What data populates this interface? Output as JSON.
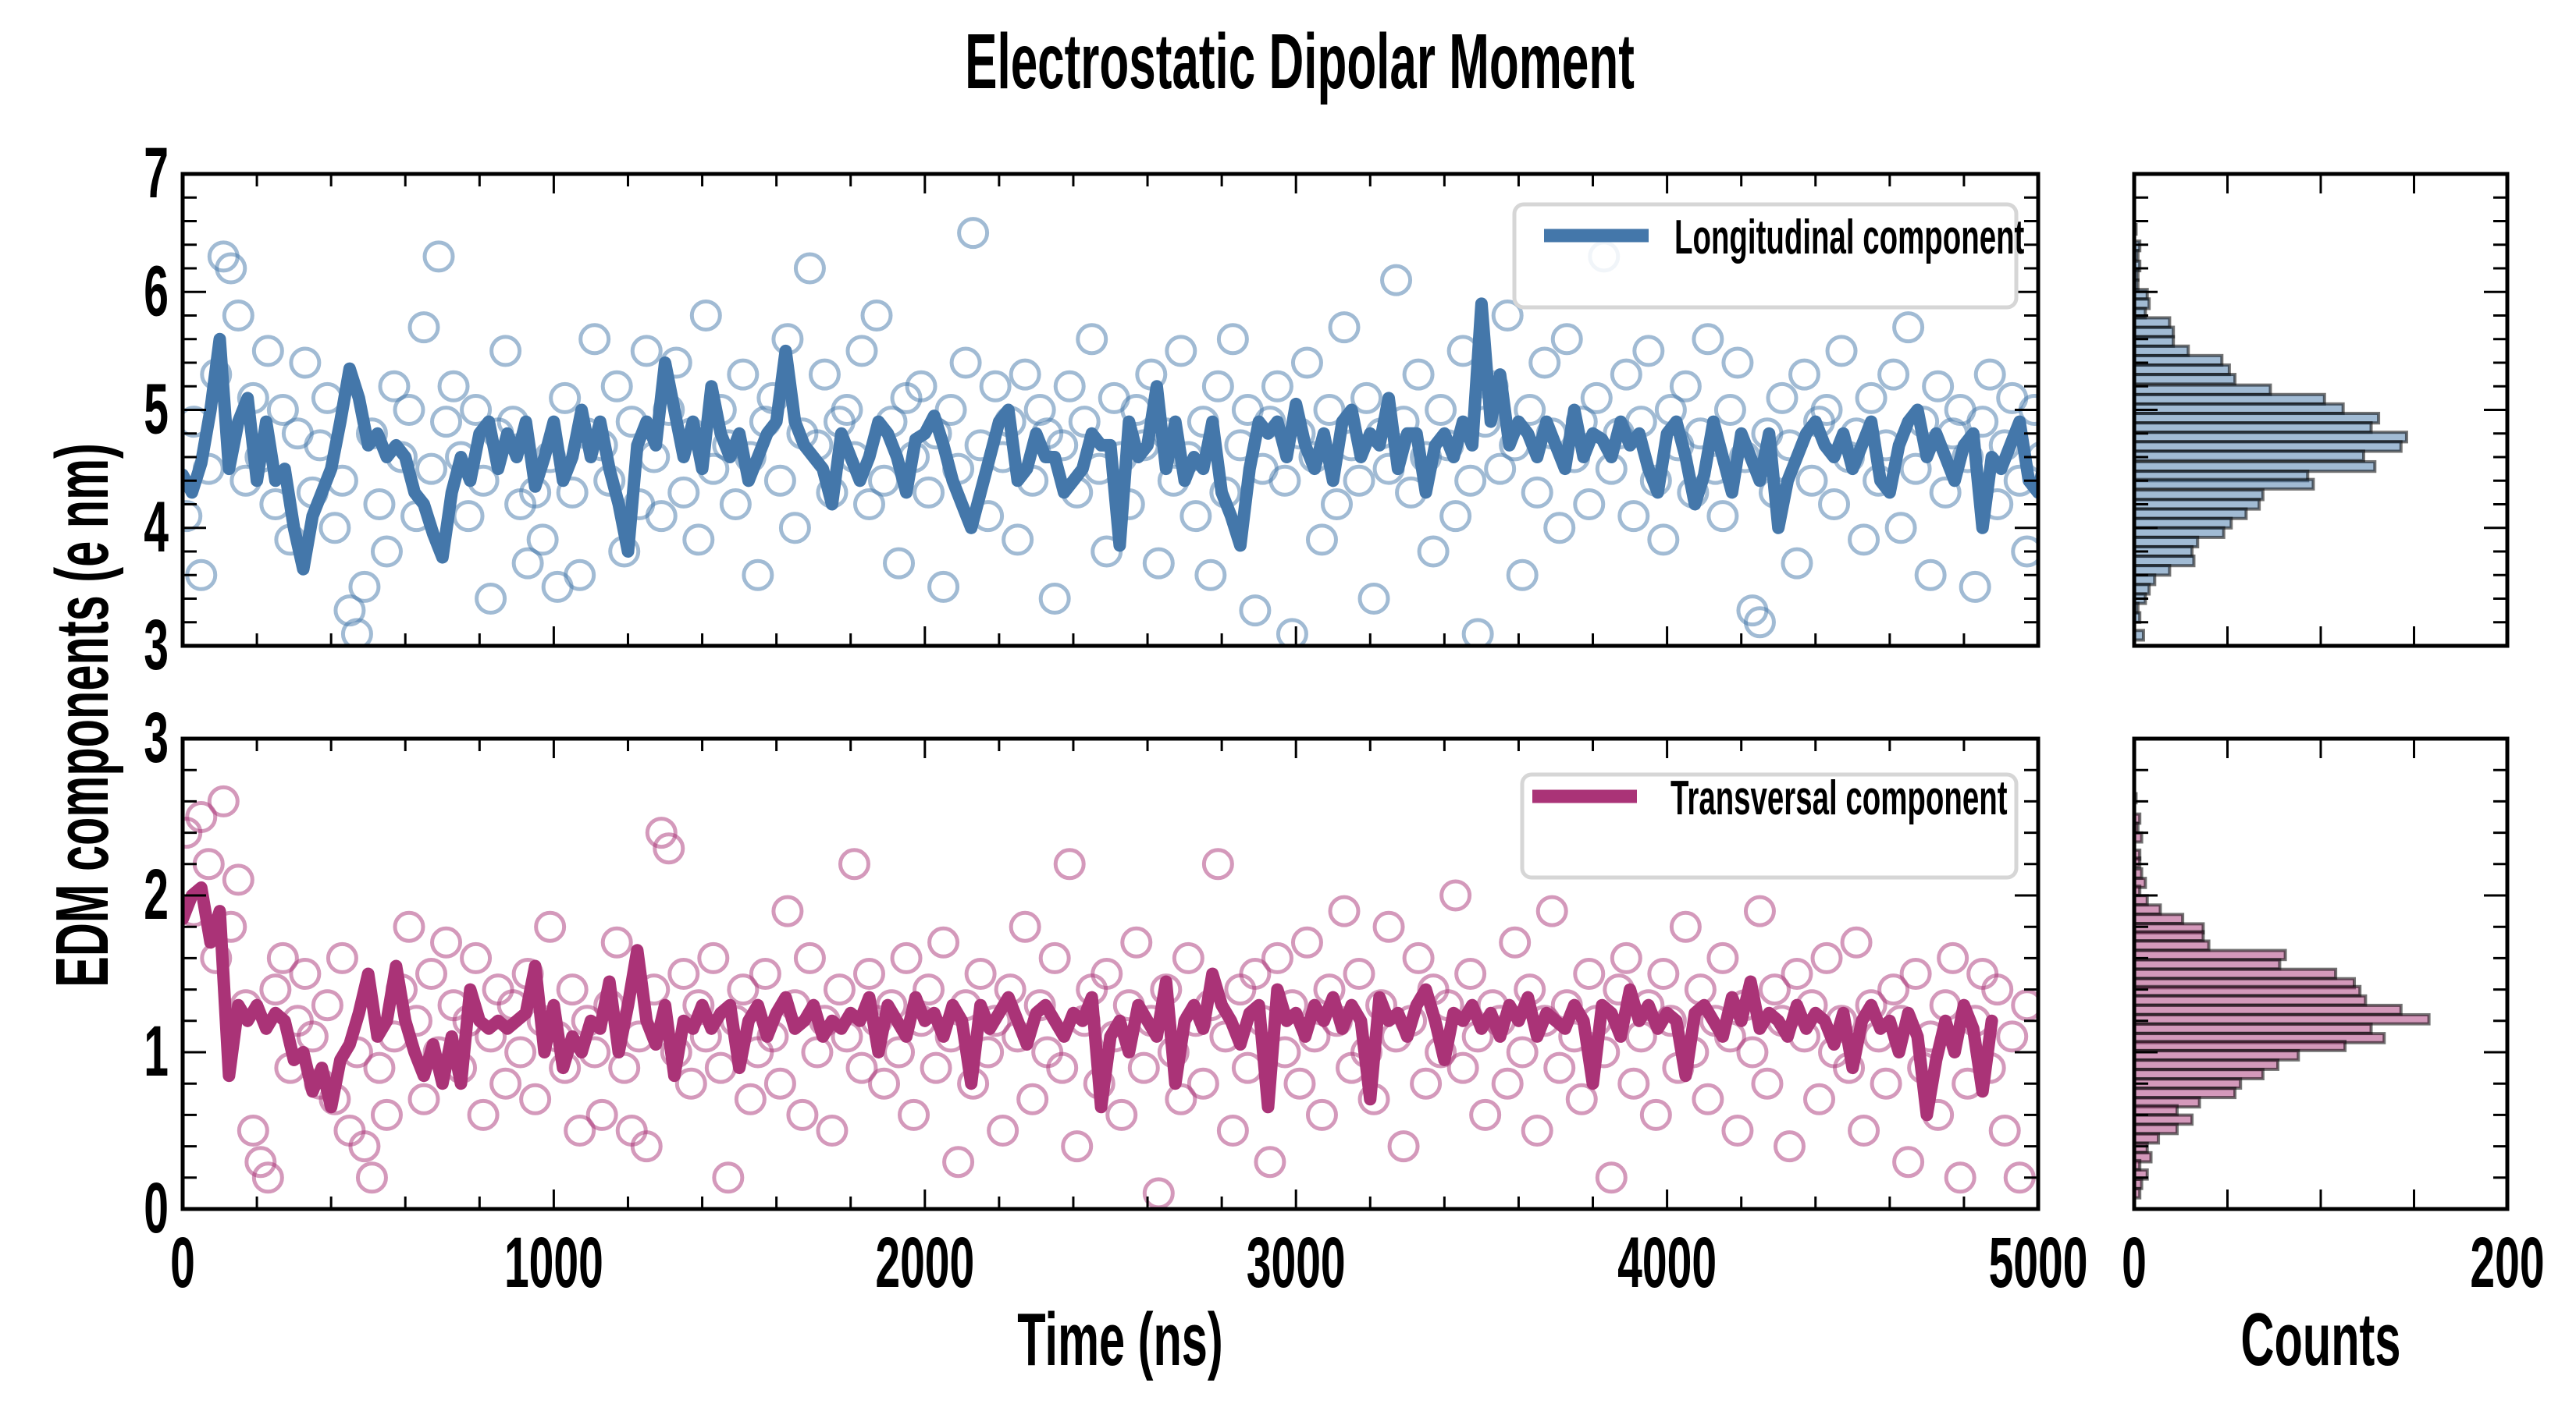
{
  "chart_data": [
    {
      "type": "scatter",
      "panel": "top-timeseries",
      "title": "Electrostatic Dipolar Moment",
      "xlabel": "Time (ns)",
      "ylabel": "EDM components (e nm)",
      "xlim": [
        0,
        5000
      ],
      "ylim": [
        3,
        7
      ],
      "xticks": [
        "0",
        "1000",
        "2000",
        "3000",
        "4000",
        "5000"
      ],
      "yticks": [
        "3",
        "4",
        "5",
        "6",
        "7"
      ],
      "x_ticklabels_visible": false,
      "legend": {
        "label": "Longitudinal component",
        "placement": "top-right"
      },
      "color": "#4477AA",
      "line": {
        "name": "Longitudinal component (running average)",
        "dt": 25,
        "values": [
          4.45,
          4.3,
          4.55,
          5.0,
          5.6,
          4.5,
          4.9,
          5.1,
          4.4,
          4.9,
          4.4,
          4.5,
          4.0,
          3.65,
          4.1,
          4.3,
          4.5,
          4.9,
          5.35,
          5.1,
          4.7,
          4.8,
          4.6,
          4.7,
          4.6,
          4.3,
          4.2,
          3.95,
          3.75,
          4.3,
          4.6,
          4.4,
          4.8,
          4.9,
          4.5,
          4.8,
          4.6,
          4.9,
          4.35,
          4.6,
          4.9,
          4.4,
          4.6,
          5.0,
          4.6,
          4.9,
          4.5,
          4.2,
          3.8,
          4.7,
          4.9,
          4.7,
          5.4,
          5.0,
          4.6,
          4.9,
          4.5,
          5.2,
          4.8,
          4.6,
          4.8,
          4.4,
          4.6,
          4.8,
          4.9,
          5.5,
          4.9,
          4.7,
          4.6,
          4.5,
          4.2,
          4.8,
          4.6,
          4.4,
          4.6,
          4.9,
          4.8,
          4.6,
          4.3,
          4.75,
          4.8,
          4.95,
          4.7,
          4.4,
          4.2,
          4.0,
          4.3,
          4.6,
          4.9,
          5.0,
          4.4,
          4.5,
          4.8,
          4.6,
          4.6,
          4.3,
          4.4,
          4.5,
          4.8,
          4.7,
          4.7,
          3.85,
          4.9,
          4.6,
          4.7,
          5.2,
          4.5,
          4.9,
          4.4,
          4.6,
          4.5,
          4.9,
          4.3,
          4.1,
          3.85,
          4.5,
          4.9,
          4.8,
          4.9,
          4.6,
          5.05,
          4.7,
          4.5,
          4.8,
          4.4,
          4.9,
          5.0,
          4.6,
          4.8,
          4.7,
          5.1,
          4.5,
          4.8,
          4.8,
          4.3,
          4.7,
          4.8,
          4.6,
          4.9,
          4.7,
          5.9,
          4.9,
          5.3,
          4.7,
          4.9,
          4.8,
          4.6,
          4.9,
          4.7,
          4.5,
          5.0,
          4.6,
          4.8,
          4.75,
          4.6,
          4.9,
          4.7,
          4.8,
          4.5,
          4.3,
          4.8,
          4.9,
          4.6,
          4.2,
          4.45,
          4.9,
          4.6,
          4.3,
          4.8,
          4.6,
          4.4,
          4.8,
          4.0,
          4.4,
          4.6,
          4.8,
          4.9,
          4.7,
          4.6,
          4.8,
          4.5,
          4.7,
          4.9,
          4.4,
          4.3,
          4.7,
          4.9,
          5.0,
          4.6,
          4.8,
          4.6,
          4.4,
          4.7,
          4.8,
          4.0,
          4.6,
          4.5,
          4.7,
          4.9,
          4.4,
          4.3,
          4.7,
          4.2,
          4.6,
          4.3
        ]
      },
      "scatter": {
        "name": "Longitudinal component (raw)",
        "dt": 20,
        "values": [
          4.1,
          4.9,
          3.6,
          4.5,
          5.3,
          6.3,
          6.2,
          5.8,
          4.4,
          5.1,
          4.6,
          5.5,
          4.2,
          5.0,
          3.9,
          4.8,
          5.4,
          4.3,
          4.7,
          5.1,
          4.0,
          4.4,
          3.3,
          3.1,
          3.5,
          4.8,
          4.2,
          3.8,
          5.2,
          4.6,
          5.0,
          4.1,
          5.7,
          4.5,
          6.3,
          4.9,
          5.2,
          4.6,
          4.1,
          5.0,
          4.4,
          3.4,
          4.8,
          5.5,
          4.9,
          4.2,
          3.7,
          4.3,
          3.9,
          4.6,
          3.5,
          5.1,
          4.3,
          3.6,
          4.8,
          5.6,
          4.7,
          4.4,
          5.2,
          3.8,
          4.9,
          4.2,
          5.5,
          4.6,
          4.1,
          5.0,
          5.4,
          4.3,
          4.8,
          3.9,
          5.8,
          4.5,
          5.0,
          4.7,
          4.2,
          5.3,
          4.6,
          3.6,
          4.9,
          5.1,
          4.4,
          5.6,
          4.0,
          4.8,
          6.2,
          4.7,
          5.3,
          4.3,
          4.9,
          5.0,
          4.6,
          5.5,
          4.2,
          5.8,
          4.4,
          4.9,
          3.7,
          5.1,
          4.6,
          5.2,
          4.3,
          4.8,
          3.5,
          5.0,
          4.5,
          5.4,
          6.5,
          4.7,
          4.1,
          5.2,
          4.6,
          4.9,
          3.9,
          5.3,
          4.4,
          5.0,
          4.8,
          3.4,
          4.7,
          5.2,
          4.3,
          4.9,
          5.6,
          4.5,
          3.8,
          5.1,
          4.6,
          4.2,
          5.0,
          4.7,
          5.3,
          3.7,
          4.8,
          4.4,
          5.5,
          4.6,
          4.1,
          4.9,
          3.6,
          5.2,
          4.3,
          5.6,
          4.7,
          5.0,
          3.3,
          4.5,
          4.9,
          5.2,
          4.4,
          3.1,
          4.8,
          5.4,
          4.6,
          3.9,
          5.0,
          4.2,
          5.7,
          4.7,
          4.4,
          5.1,
          3.4,
          4.8,
          4.5,
          6.1,
          4.9,
          4.3,
          5.3,
          4.6,
          3.8,
          5.0,
          4.7,
          4.1,
          5.5,
          4.4,
          3.1,
          4.9,
          5.2,
          4.5,
          5.8,
          4.7,
          3.6,
          5.0,
          4.3,
          5.4,
          4.8,
          4.0,
          5.6,
          4.6,
          4.9,
          4.2,
          5.1,
          6.3,
          4.5,
          4.8,
          5.3,
          4.1,
          4.9,
          5.5,
          4.4,
          3.9,
          5.0,
          4.7,
          5.2,
          4.3,
          4.8,
          5.6,
          4.5,
          4.1,
          5.0,
          5.4,
          4.6,
          3.3,
          3.2,
          4.8,
          4.3,
          5.1,
          4.7,
          3.7,
          5.3,
          4.4,
          4.9,
          5.0,
          4.2,
          5.5,
          4.6,
          4.8,
          3.9,
          5.1,
          4.4,
          4.7,
          5.3,
          4.0,
          5.7,
          4.5,
          4.9,
          3.6,
          5.2,
          4.3,
          4.8,
          5.0,
          4.6,
          3.5,
          4.9,
          5.3,
          4.2,
          4.7,
          5.1,
          4.4,
          3.8,
          5.0,
          4.6
        ]
      }
    },
    {
      "type": "scatter",
      "panel": "bottom-timeseries",
      "xlabel": "Time (ns)",
      "xlim": [
        0,
        5000
      ],
      "ylim": [
        0,
        3
      ],
      "xticks": [
        "0",
        "1000",
        "2000",
        "3000",
        "4000",
        "5000"
      ],
      "yticks": [
        "0",
        "1",
        "2",
        "3"
      ],
      "legend": {
        "label": "Transversal component",
        "placement": "top-right"
      },
      "color": "#AA3377",
      "line": {
        "name": "Transversal component (running average)",
        "dt": 25,
        "values": [
          1.85,
          2.0,
          2.05,
          1.7,
          1.9,
          0.85,
          1.3,
          1.2,
          1.3,
          1.15,
          1.25,
          1.2,
          0.95,
          1.0,
          0.75,
          0.9,
          0.65,
          0.95,
          1.05,
          1.25,
          1.5,
          1.1,
          1.2,
          1.55,
          1.2,
          1.0,
          0.85,
          1.05,
          0.8,
          1.1,
          0.8,
          1.4,
          1.2,
          1.15,
          1.2,
          1.15,
          1.2,
          1.25,
          1.55,
          1.0,
          1.3,
          0.9,
          1.1,
          1.0,
          1.2,
          1.15,
          1.45,
          1.0,
          1.3,
          1.65,
          1.2,
          1.05,
          1.3,
          0.85,
          1.2,
          1.15,
          1.3,
          1.15,
          1.25,
          1.3,
          0.9,
          1.2,
          1.3,
          1.1,
          1.25,
          1.35,
          1.15,
          1.2,
          1.3,
          1.1,
          1.2,
          1.15,
          1.25,
          1.2,
          1.35,
          1.0,
          1.3,
          1.2,
          1.1,
          1.35,
          1.2,
          1.25,
          1.1,
          1.3,
          1.2,
          0.8,
          1.3,
          1.15,
          1.25,
          1.35,
          1.2,
          1.05,
          1.25,
          1.3,
          1.2,
          1.1,
          1.25,
          1.2,
          1.35,
          0.65,
          1.1,
          1.2,
          1.0,
          1.3,
          1.2,
          1.1,
          1.45,
          0.8,
          1.2,
          1.3,
          1.15,
          1.5,
          1.3,
          1.2,
          1.05,
          1.25,
          1.3,
          0.65,
          1.4,
          1.2,
          1.25,
          1.1,
          1.3,
          1.2,
          1.35,
          1.15,
          1.3,
          1.2,
          0.7,
          1.35,
          1.2,
          1.25,
          1.1,
          1.3,
          1.4,
          1.2,
          0.95,
          1.25,
          1.2,
          1.3,
          1.15,
          1.25,
          1.1,
          1.3,
          1.2,
          1.35,
          1.1,
          1.25,
          1.2,
          1.15,
          1.3,
          1.2,
          0.8,
          1.3,
          1.25,
          1.1,
          1.4,
          1.2,
          1.3,
          1.15,
          1.25,
          1.2,
          0.85,
          1.25,
          1.3,
          1.2,
          1.1,
          1.35,
          1.2,
          1.45,
          1.15,
          1.25,
          1.2,
          1.1,
          1.3,
          1.15,
          1.25,
          1.2,
          1.05,
          1.25,
          0.9,
          1.2,
          1.3,
          1.15,
          1.2,
          1.0,
          1.25,
          1.1,
          0.6,
          0.95,
          1.2,
          1.0,
          1.3,
          1.15,
          0.75,
          1.2
        ]
      },
      "scatter": {
        "name": "Transversal component (raw)",
        "dt": 20,
        "values": [
          2.4,
          1.9,
          2.5,
          2.2,
          1.6,
          2.6,
          1.8,
          2.1,
          1.3,
          0.5,
          0.3,
          0.2,
          1.4,
          1.6,
          0.9,
          1.2,
          1.5,
          1.1,
          0.8,
          1.3,
          0.7,
          1.6,
          0.5,
          1.0,
          0.4,
          0.2,
          0.9,
          0.6,
          1.1,
          1.4,
          1.8,
          1.2,
          0.7,
          1.5,
          1.0,
          1.7,
          1.3,
          0.9,
          1.2,
          1.6,
          0.6,
          1.1,
          1.4,
          0.8,
          1.3,
          1.0,
          1.5,
          0.7,
          1.2,
          1.8,
          1.1,
          0.9,
          1.4,
          0.5,
          1.2,
          1.0,
          0.6,
          1.3,
          1.7,
          0.9,
          0.5,
          1.1,
          0.4,
          1.4,
          2.4,
          2.3,
          1.0,
          1.5,
          0.8,
          1.3,
          1.1,
          1.6,
          0.9,
          0.2,
          1.2,
          1.4,
          0.7,
          1.0,
          1.5,
          1.1,
          0.8,
          1.9,
          1.3,
          0.6,
          1.6,
          1.0,
          1.2,
          0.5,
          1.4,
          1.1,
          2.2,
          0.9,
          1.5,
          1.2,
          0.8,
          1.3,
          1.0,
          1.6,
          0.6,
          1.2,
          1.4,
          0.9,
          1.7,
          1.1,
          0.3,
          1.3,
          0.8,
          1.5,
          1.0,
          1.2,
          0.5,
          1.4,
          1.1,
          1.8,
          0.7,
          1.3,
          1.0,
          1.6,
          0.9,
          2.2,
          0.4,
          1.2,
          1.4,
          0.8,
          1.5,
          1.1,
          0.6,
          1.3,
          1.7,
          0.9,
          1.2,
          0.1,
          1.4,
          1.0,
          0.7,
          1.6,
          1.2,
          0.8,
          1.3,
          2.2,
          1.1,
          0.5,
          1.4,
          0.9,
          1.5,
          1.2,
          0.3,
          1.6,
          1.0,
          1.3,
          0.8,
          1.7,
          1.1,
          0.6,
          1.4,
          1.2,
          1.9,
          0.9,
          1.5,
          1.0,
          0.7,
          1.3,
          1.8,
          1.1,
          0.4,
          1.2,
          1.6,
          0.8,
          1.4,
          1.0,
          1.3,
          2.0,
          0.9,
          1.5,
          1.1,
          0.6,
          1.3,
          1.2,
          0.8,
          1.7,
          1.0,
          1.4,
          0.5,
          1.2,
          1.9,
          0.9,
          1.3,
          1.1,
          0.7,
          1.5,
          1.2,
          1.0,
          0.2,
          1.4,
          1.6,
          0.8,
          1.1,
          1.3,
          0.6,
          1.5,
          1.2,
          0.9,
          1.8,
          1.0,
          1.4,
          0.7,
          1.2,
          1.6,
          1.1,
          0.5,
          1.3,
          1.0,
          1.9,
          0.8,
          1.4,
          1.2,
          0.4,
          1.5,
          1.1,
          1.3,
          0.7,
          1.6,
          1.0,
          1.2,
          0.9,
          1.7,
          0.5,
          1.3,
          1.1,
          0.8,
          1.4,
          1.2,
          0.3,
          1.5,
          0.9,
          1.1,
          0.6,
          1.3,
          1.6,
          0.2,
          0.8,
          1.2,
          1.5,
          0.9,
          1.4,
          0.5,
          1.1,
          0.2,
          1.3
        ]
      }
    },
    {
      "type": "bar",
      "orientation": "horizontal",
      "panel": "top-histogram",
      "xlabel": "Counts",
      "xlim": [
        0,
        200
      ],
      "ylim": [
        3,
        7
      ],
      "color": "#4477AA",
      "bin_width": 0.081,
      "bin_centers": [
        6.53,
        6.47,
        6.39,
        6.31,
        6.22,
        6.14,
        6.06,
        5.98,
        5.9,
        5.82,
        5.74,
        5.66,
        5.58,
        5.5,
        5.42,
        5.34,
        5.26,
        5.17,
        5.09,
        5.01,
        4.93,
        4.85,
        4.77,
        4.69,
        4.61,
        4.52,
        4.44,
        4.37,
        4.28,
        4.2,
        4.12,
        4.04,
        3.96,
        3.88,
        3.8,
        3.72,
        3.64,
        3.56,
        3.48,
        3.4,
        3.32,
        3.24,
        3.09
      ],
      "counts": [
        1,
        0,
        3,
        2,
        3,
        2,
        2,
        7,
        8,
        6,
        19,
        21,
        21,
        29,
        47,
        51,
        54,
        73,
        102,
        112,
        131,
        127,
        146,
        143,
        123,
        129,
        93,
        96,
        69,
        67,
        60,
        52,
        48,
        34,
        31,
        32,
        19,
        11,
        8,
        6,
        2,
        3,
        5
      ]
    },
    {
      "type": "bar",
      "orientation": "horizontal",
      "panel": "bottom-histogram",
      "xlabel": "Counts",
      "xlim": [
        0,
        200
      ],
      "ylim": [
        0,
        3
      ],
      "xticks": [
        "0",
        "200"
      ],
      "color": "#AA3377",
      "bin_width": 0.058,
      "bin_centers": [
        2.62,
        2.49,
        2.43,
        2.37,
        2.26,
        2.21,
        2.14,
        2.08,
        2.03,
        1.97,
        1.91,
        1.85,
        1.79,
        1.74,
        1.68,
        1.62,
        1.56,
        1.5,
        1.44,
        1.39,
        1.33,
        1.27,
        1.21,
        1.15,
        1.09,
        1.04,
        0.98,
        0.92,
        0.86,
        0.8,
        0.74,
        0.68,
        0.63,
        0.57,
        0.51,
        0.45,
        0.39,
        0.33,
        0.28,
        0.22,
        0.16,
        0.1
      ],
      "counts": [
        1,
        3,
        2,
        4,
        3,
        3,
        4,
        6,
        3,
        7,
        14,
        26,
        37,
        37,
        40,
        81,
        78,
        108,
        118,
        121,
        124,
        143,
        158,
        127,
        134,
        113,
        88,
        77,
        69,
        57,
        54,
        35,
        23,
        31,
        23,
        13,
        7,
        9,
        3,
        7,
        4,
        3
      ]
    }
  ]
}
